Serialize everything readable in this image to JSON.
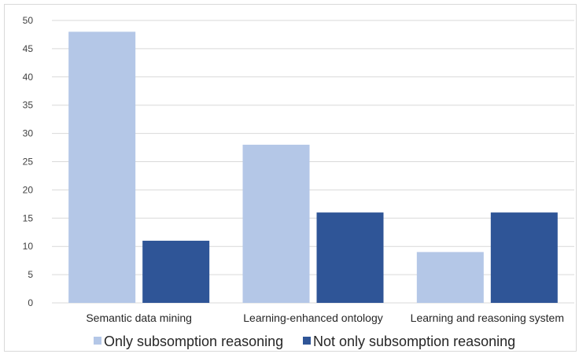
{
  "chart_data": {
    "type": "bar",
    "title": "",
    "xlabel": "",
    "ylabel": "",
    "categories": [
      "Semantic data mining",
      "Learning-enhanced ontology",
      "Learning and reasoning system"
    ],
    "series": [
      {
        "name": "Only subsomption reasoning",
        "values": [
          48,
          28,
          9
        ],
        "color": "#b4c7e7"
      },
      {
        "name": "Not only subsomption reasoning",
        "values": [
          11,
          16,
          16
        ],
        "color": "#2f5597"
      }
    ],
    "ylim": [
      0,
      50
    ],
    "yticks": [
      "0",
      "5",
      "10",
      "15",
      "20",
      "25",
      "30",
      "35",
      "40",
      "45",
      "50"
    ],
    "grid": true,
    "legend_position": "bottom",
    "gridline_color": "#d9d9d9"
  }
}
